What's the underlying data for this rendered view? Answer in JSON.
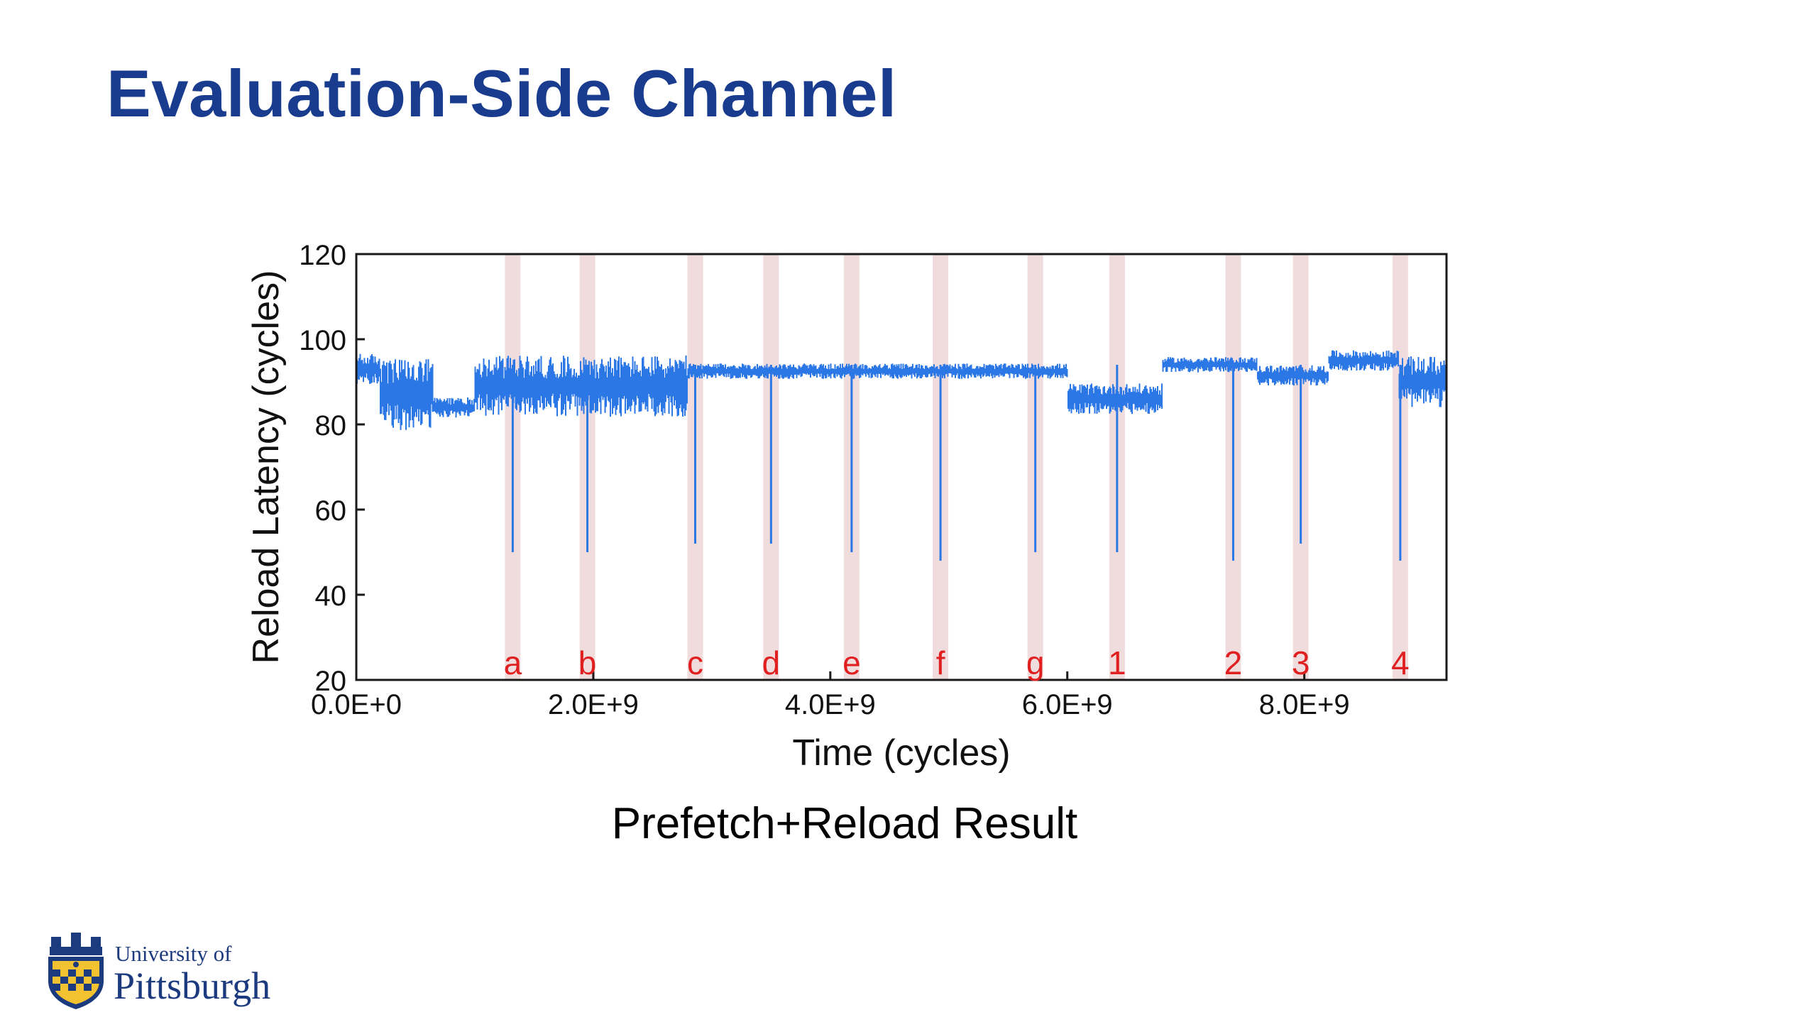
{
  "slide": {
    "title": "Evaluation-Side Channel",
    "caption": "Prefetch+Reload Result"
  },
  "logo": {
    "line1": "University of",
    "line2": "Pittsburgh",
    "icon": "university-crest-icon",
    "colors": {
      "navy": "#1c3a7e",
      "gold": "#f2c230"
    }
  },
  "colors": {
    "title": "#1a3c8f",
    "series": "#2b77e5",
    "event_band": "#f0dcdc",
    "event_label": "#e02020"
  },
  "chart_data": {
    "type": "line",
    "xlabel": "Time (cycles)",
    "ylabel": "Reload Latency (cycles)",
    "xlim": [
      0,
      9200000000.0
    ],
    "ylim": [
      20,
      120
    ],
    "xticks": [
      {
        "value": 0,
        "label": "0.0E+0"
      },
      {
        "value": 2000000000.0,
        "label": "2.0E+9"
      },
      {
        "value": 4000000000.0,
        "label": "4.0E+9"
      },
      {
        "value": 6000000000.0,
        "label": "6.0E+9"
      },
      {
        "value": 8000000000.0,
        "label": "8.0E+9"
      }
    ],
    "yticks": [
      {
        "value": 20,
        "label": "20"
      },
      {
        "value": 40,
        "label": "40"
      },
      {
        "value": 60,
        "label": "60"
      },
      {
        "value": 80,
        "label": "80"
      },
      {
        "value": 100,
        "label": "100"
      },
      {
        "value": 120,
        "label": "120"
      }
    ],
    "grid": false,
    "baseline_segments": [
      {
        "x0": 0,
        "x1": 200000000.0,
        "center": 93,
        "spread": 3
      },
      {
        "x0": 200000000.0,
        "x1": 650000000.0,
        "center": 87,
        "spread": 7
      },
      {
        "x0": 650000000.0,
        "x1": 1000000000.0,
        "center": 84,
        "spread": 2
      },
      {
        "x0": 1000000000.0,
        "x1": 2800000000.0,
        "center": 89,
        "spread": 6
      },
      {
        "x0": 2800000000.0,
        "x1": 6000000000.0,
        "center": 92.5,
        "spread": 1.5
      },
      {
        "x0": 6000000000.0,
        "x1": 6800000000.0,
        "center": 86,
        "spread": 3
      },
      {
        "x0": 6800000000.0,
        "x1": 7600000000.0,
        "center": 94,
        "spread": 1.5
      },
      {
        "x0": 7600000000.0,
        "x1": 8200000000.0,
        "center": 91.5,
        "spread": 2
      },
      {
        "x0": 8200000000.0,
        "x1": 8800000000.0,
        "center": 95,
        "spread": 2
      },
      {
        "x0": 8800000000.0,
        "x1": 9200000000.0,
        "center": 90,
        "spread": 5
      }
    ],
    "events": [
      {
        "label": "a",
        "x": 1320000000.0,
        "min_latency": 50
      },
      {
        "label": "b",
        "x": 1950000000.0,
        "min_latency": 50
      },
      {
        "label": "c",
        "x": 2860000000.0,
        "min_latency": 52
      },
      {
        "label": "d",
        "x": 3500000000.0,
        "min_latency": 52
      },
      {
        "label": "e",
        "x": 4180000000.0,
        "min_latency": 50
      },
      {
        "label": "f",
        "x": 4930000000.0,
        "min_latency": 48
      },
      {
        "label": "g",
        "x": 5730000000.0,
        "min_latency": 50
      },
      {
        "label": "1",
        "x": 6420000000.0,
        "min_latency": 50
      },
      {
        "label": "2",
        "x": 7400000000.0,
        "min_latency": 48
      },
      {
        "label": "3",
        "x": 7970000000.0,
        "min_latency": 52
      },
      {
        "label": "4",
        "x": 8810000000.0,
        "min_latency": 48
      }
    ]
  }
}
